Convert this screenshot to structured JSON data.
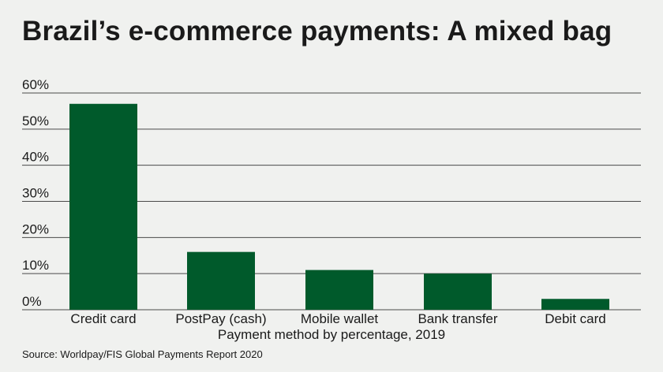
{
  "chart_data": {
    "type": "bar",
    "title": "Brazil’s e-commerce payments: A mixed bag",
    "xlabel": "Payment method by percentage, 2019",
    "ylabel": "",
    "categories": [
      "Credit card",
      "PostPay (cash)",
      "Mobile wallet",
      "Bank transfer",
      "Debit card"
    ],
    "values": [
      57,
      16,
      11,
      10,
      3
    ],
    "ylim": [
      0,
      60
    ],
    "yticks": [
      0,
      10,
      20,
      30,
      40,
      50,
      60
    ],
    "ytick_labels": [
      "0%",
      "10%",
      "20%",
      "30%",
      "40%",
      "50%",
      "60%"
    ],
    "grid": true,
    "colors": {
      "bar": "#005a2b",
      "grid": "#4a4a4a"
    }
  },
  "source": "Source: Worldpay/FIS Global Payments Report 2020"
}
